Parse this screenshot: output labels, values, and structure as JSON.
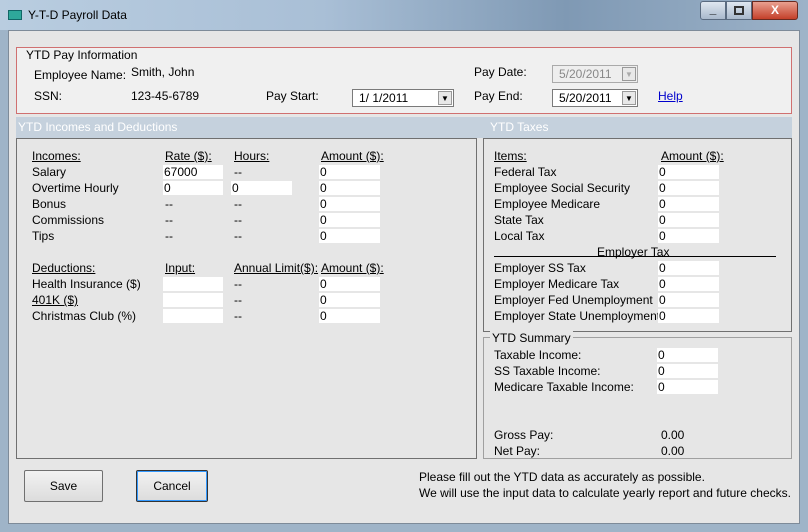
{
  "window": {
    "title": "Y-T-D Payroll Data",
    "controls": [
      "minimize",
      "maximize",
      "close"
    ]
  },
  "pay_info": {
    "legend": "YTD Pay Information",
    "employee_name_label": "Employee Name:",
    "employee_name": "Smith, John",
    "ssn_label": "SSN:",
    "ssn": "123-45-6789",
    "pay_start_label": "Pay Start:",
    "pay_start": "1/  1/2011",
    "pay_date_label": "Pay Date:",
    "pay_date": "5/20/2011",
    "pay_end_label": "Pay End:",
    "pay_end": "5/20/2011",
    "help": "Help"
  },
  "incomes_section": {
    "header": "YTD Incomes and Deductions",
    "incomes_headers": [
      "Incomes:",
      "Rate ($):",
      "Hours:",
      "Amount ($):"
    ],
    "incomes": [
      {
        "label": "Salary",
        "rate": "67000",
        "rate_input": true,
        "hours": "--",
        "hours_input": false,
        "amount": "0"
      },
      {
        "label": "Overtime Hourly",
        "rate": "0",
        "rate_input": true,
        "hours": "0",
        "hours_input": true,
        "amount": "0"
      },
      {
        "label": "Bonus",
        "rate": "--",
        "rate_input": false,
        "hours": "--",
        "hours_input": false,
        "amount": "0"
      },
      {
        "label": "Commissions",
        "rate": "--",
        "rate_input": false,
        "hours": "--",
        "hours_input": false,
        "amount": "0"
      },
      {
        "label": "Tips",
        "rate": "--",
        "rate_input": false,
        "hours": "--",
        "hours_input": false,
        "amount": "0"
      }
    ],
    "deductions_headers": [
      "Deductions:",
      "Input:",
      "Annual Limit($):",
      "Amount ($):"
    ],
    "deductions": [
      {
        "label": "Health Insurance  ($)",
        "input": "",
        "limit": "--",
        "amount": "0",
        "link": false
      },
      {
        "label": "401K  ($)",
        "input": "",
        "limit": "--",
        "amount": "0",
        "link": true
      },
      {
        "label": "Christmas Club  (%)",
        "input": "",
        "limit": "--",
        "amount": "0",
        "link": false
      }
    ]
  },
  "taxes_section": {
    "header": "YTD Taxes",
    "headers": [
      "Items:",
      "Amount ($):"
    ],
    "items": [
      {
        "label": "Federal Tax",
        "amount": "0"
      },
      {
        "label": "Employee Social Security",
        "amount": "0"
      },
      {
        "label": "Employee Medicare",
        "amount": "0"
      },
      {
        "label": "State Tax",
        "amount": "0"
      },
      {
        "label": "Local Tax",
        "amount": "0"
      }
    ],
    "employer_title": "Employer Tax",
    "employer_items": [
      {
        "label": "Employer SS Tax",
        "amount": "0"
      },
      {
        "label": "Employer Medicare Tax",
        "amount": "0"
      },
      {
        "label": "Employer Fed Unemployment",
        "amount": "0"
      },
      {
        "label": "Employer State Unemployment",
        "amount": "0"
      }
    ]
  },
  "summary": {
    "legend": "YTD Summary",
    "items": [
      {
        "label": "Taxable Income:",
        "value": "0"
      },
      {
        "label": "SS Taxable Income:",
        "value": "0"
      },
      {
        "label": "Medicare Taxable Income:",
        "value": "0"
      }
    ],
    "gross_pay_label": "Gross Pay:",
    "gross_pay": "0.00",
    "net_pay_label": "Net Pay:",
    "net_pay": "0.00"
  },
  "footer": {
    "save": "Save",
    "cancel": "Cancel",
    "note_line1": "Please fill out the YTD data as accurately as possible.",
    "note_line2": "We will use the input data to calculate yearly report and future checks."
  },
  "colors": {
    "group_border": "#d07070",
    "section_header": "#c5d1dd",
    "link": "#0000cc"
  }
}
